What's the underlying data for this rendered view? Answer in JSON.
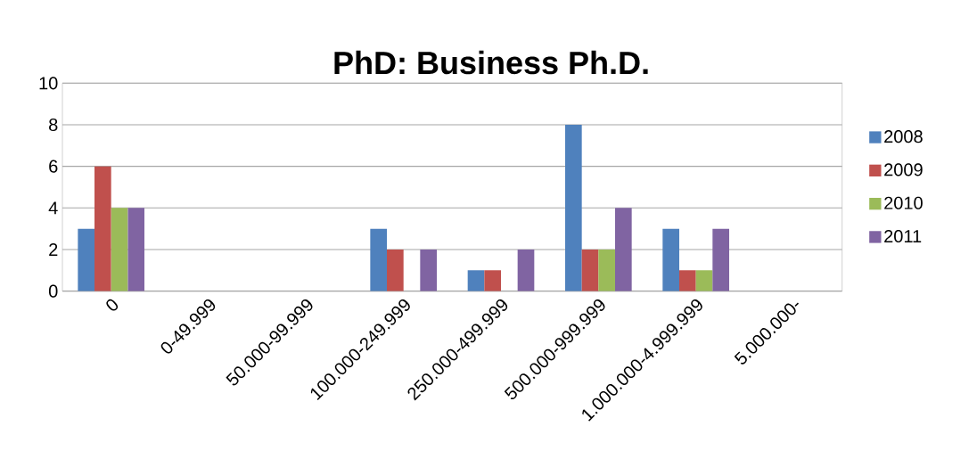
{
  "chart_data": {
    "type": "bar",
    "title": "PhD: Business Ph.D.",
    "categories": [
      "0",
      "0-49.999",
      "50.000-99.999",
      "100.000-249.999",
      "250.000-499.999",
      "500.000-999.999",
      "1.000.000-4.999.999",
      "5.000.000-"
    ],
    "series": [
      {
        "name": "2008",
        "color": "#4f81bd",
        "values": [
          3,
          0,
          0,
          3,
          1,
          8,
          3,
          0
        ]
      },
      {
        "name": "2009",
        "color": "#c0504d",
        "values": [
          6,
          0,
          0,
          2,
          1,
          2,
          1,
          0
        ]
      },
      {
        "name": "2010",
        "color": "#9bbb59",
        "values": [
          4,
          0,
          0,
          0,
          0,
          2,
          1,
          0
        ]
      },
      {
        "name": "2011",
        "color": "#8064a2",
        "values": [
          4,
          0,
          0,
          2,
          2,
          4,
          3,
          0
        ]
      }
    ],
    "ylim": [
      0,
      10
    ],
    "yticks": [
      0,
      2,
      4,
      6,
      8,
      10
    ],
    "grid": "y",
    "legend": "right"
  }
}
